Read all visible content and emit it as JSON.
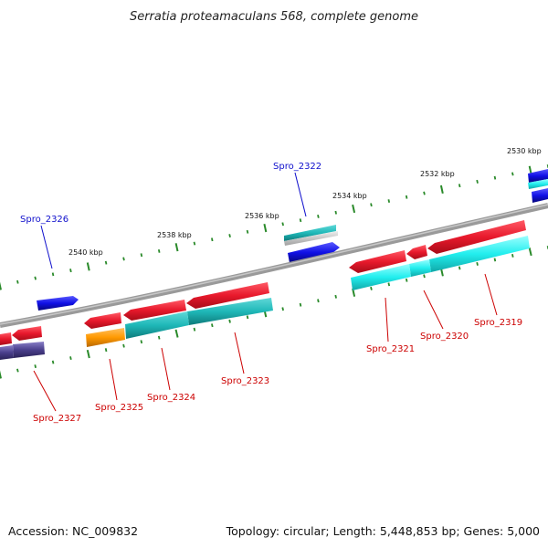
{
  "title": "Serratia proteamaculans 568, complete genome",
  "footer": {
    "accession": "Accession: NC_009832",
    "summary": "Topology: circular; Length: 5,448,853 bp; Genes: 5,000"
  },
  "scale": {
    "tick_labels": [
      "2530 kbp",
      "2532 kbp",
      "2534 kbp",
      "2536 kbp",
      "2538 kbp",
      "2540 kbp"
    ]
  },
  "genes": [
    {
      "name": "Spro_2319",
      "strand": "reverse",
      "color": "#e8192c"
    },
    {
      "name": "Spro_2320",
      "strand": "reverse",
      "color": "#e8192c"
    },
    {
      "name": "Spro_2321",
      "strand": "reverse",
      "color": "#e8192c"
    },
    {
      "name": "Spro_2322",
      "strand": "forward",
      "color": "#1010e6"
    },
    {
      "name": "Spro_2323",
      "strand": "reverse",
      "color": "#e8192c"
    },
    {
      "name": "Spro_2324",
      "strand": "reverse",
      "color": "#e8192c"
    },
    {
      "name": "Spro_2325",
      "strand": "reverse",
      "color": "#e8192c"
    },
    {
      "name": "Spro_2326",
      "strand": "forward",
      "color": "#1010e6"
    },
    {
      "name": "Spro_2327",
      "strand": "reverse",
      "color": "#e8192c"
    }
  ],
  "colors": {
    "reverse_gene": "#e8192c",
    "forward_gene": "#1010e6",
    "cds_teal": "#1fb8b8",
    "cds_cyan": "#22eeee",
    "cds_orange": "#ff9900",
    "cds_purple": "#4a3f8c",
    "backbone": "#777777",
    "scale_tick": "#2a8a2a",
    "forward_label": "#1010cc",
    "reverse_label": "#cc0000"
  }
}
